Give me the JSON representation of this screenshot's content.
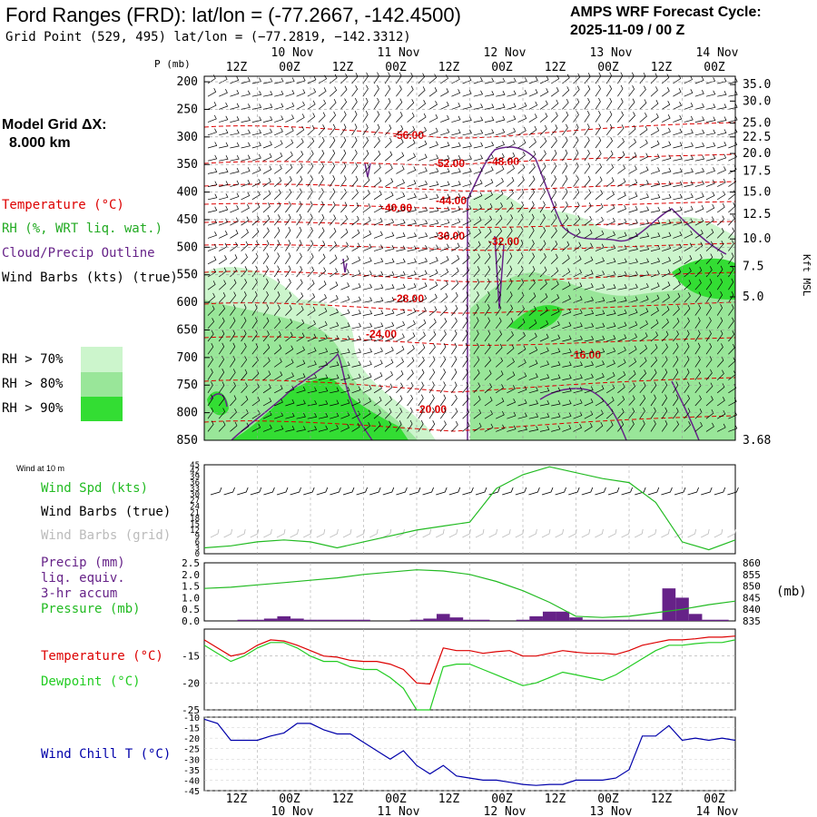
{
  "header": {
    "title": "Ford Ranges (FRD):  lat/lon = (-77.2667, -142.4500)",
    "subtitle": "Grid Point (529, 495) lat/lon = (−77.2819, −142.3312)",
    "cycle_line1": "AMPS WRF Forecast Cycle:",
    "cycle_line2": "2025-11-09 / 00  Z"
  },
  "left_legend": {
    "model_grid_line1": "Model Grid ΔX:",
    "model_grid_line2": "8.000 km",
    "temperature": "Temperature (°C)",
    "rh": "RH (%, WRT liq. wat.)",
    "cloud": "Cloud/Precip Outline",
    "wind": "Wind Barbs (kts) (true)",
    "rh_70": "RH > 70%",
    "rh_80": "RH > 80%",
    "rh_90": "RH > 90%"
  },
  "colors": {
    "temperature": "#dd0000",
    "rh": "#22bb22",
    "cloud": "#662288",
    "precip_bar": "#662288",
    "dewpoint": "#22cc22",
    "windchill": "#0000aa",
    "rh70": "#ccf5cc",
    "rh80": "#99e699",
    "rh90": "#33dd33"
  },
  "time_axis": {
    "tick_labels": [
      "12Z",
      "00Z",
      "12Z",
      "00Z",
      "12Z",
      "00Z",
      "12Z",
      "00Z",
      "12Z",
      "00Z"
    ],
    "date_labels": [
      "10 Nov",
      "11 Nov",
      "12 Nov",
      "13 Nov",
      "14 Nov"
    ]
  },
  "chart_data": [
    {
      "type": "heatmap",
      "name": "cross-section",
      "ylabel": "P (mb)",
      "ylabel_right": "Kft MSL",
      "pressure_ticks": [
        200,
        250,
        300,
        350,
        400,
        450,
        500,
        550,
        600,
        650,
        700,
        750,
        800,
        850
      ],
      "height_ticks": [
        "35.0",
        "30.0",
        "25.0",
        "22.5",
        "20.0",
        "17.5",
        "15.0",
        "12.5",
        "10.0",
        "7.5",
        "5.0",
        "3.68"
      ],
      "height_tick_pressures": [
        205,
        235,
        275,
        300,
        330,
        362,
        400,
        440,
        485,
        535,
        590,
        850
      ],
      "temperature_contour_labels": [
        "-56.00",
        "-52.00",
        "-48.00",
        "-44.00",
        "-40.00",
        "-36.00",
        "-32.00",
        "-28.00",
        "-24.00",
        "-20.00",
        "-16.00"
      ],
      "ylim": [
        850,
        190
      ]
    },
    {
      "type": "line",
      "name": "wind-10m",
      "title": "Wind at 10 m",
      "legend": [
        "Wind Spd (kts)",
        "Wind Barbs (true)",
        "Wind Barbs (grid)"
      ],
      "y_ticks": [
        0,
        3,
        6,
        9,
        12,
        15,
        18,
        21,
        24,
        27,
        30,
        33,
        36,
        39,
        42,
        45
      ],
      "ylim": [
        0,
        45
      ],
      "series": [
        {
          "x": [
            0,
            6,
            12,
            18,
            24,
            30,
            36,
            42,
            48,
            54,
            60,
            66,
            72,
            78,
            84,
            90,
            96,
            102,
            108,
            114,
            120
          ],
          "values": [
            3,
            4,
            6,
            7,
            6,
            3,
            6,
            9,
            12,
            14,
            16,
            33,
            40,
            44,
            41,
            38,
            36,
            26,
            6,
            2,
            7
          ]
        }
      ]
    },
    {
      "type": "bar",
      "name": "precip-pressure",
      "legend": [
        "Precip (mm)",
        "liq. equiv.",
        "3-hr accum",
        "Pressure (mb)"
      ],
      "y_ticks": [
        0.0,
        0.5,
        1.0,
        1.5,
        2.0,
        2.5
      ],
      "ylim": [
        0,
        2.5
      ],
      "y2_ticks": [
        835,
        840,
        845,
        850,
        855,
        860
      ],
      "y2lim": [
        835,
        860
      ],
      "y2_unit": "(mb)",
      "precip": {
        "x": [
          9,
          12,
          15,
          18,
          21,
          24,
          27,
          30,
          33,
          36,
          39,
          42,
          45,
          48,
          51,
          54,
          57,
          60,
          63,
          66,
          69,
          72,
          75,
          78,
          81,
          84,
          87,
          90,
          93,
          96,
          99,
          102,
          105,
          108,
          111,
          114,
          117
        ],
        "values": [
          0.05,
          0.05,
          0.1,
          0.2,
          0.1,
          0.05,
          0.05,
          0.05,
          0.05,
          0.05,
          0.0,
          0.0,
          0.0,
          0.05,
          0.1,
          0.3,
          0.15,
          0.05,
          0.05,
          0.0,
          0.0,
          0.05,
          0.2,
          0.4,
          0.4,
          0.15,
          0.05,
          0.05,
          0.05,
          0.05,
          0.05,
          0.05,
          1.4,
          1.0,
          0.3,
          0.05,
          0.05
        ]
      },
      "pressure": {
        "x": [
          0,
          6,
          12,
          18,
          24,
          30,
          36,
          42,
          48,
          54,
          60,
          66,
          72,
          78,
          84,
          90,
          96,
          102,
          108,
          114,
          120
        ],
        "values": [
          849,
          849.5,
          850.5,
          851.5,
          852.5,
          853.5,
          855,
          856,
          857,
          856.5,
          855,
          852,
          848,
          843,
          837,
          836.5,
          837,
          838.5,
          840,
          842,
          843.5
        ]
      }
    },
    {
      "type": "line",
      "name": "temperature-dewpoint",
      "legend": [
        "Temperature (°C)",
        "Dewpoint (°C)"
      ],
      "y_ticks": [
        -15,
        -20,
        -25
      ],
      "ylim": [
        -25,
        -10
      ],
      "series": [
        {
          "x": [
            0,
            3,
            6,
            9,
            12,
            15,
            18,
            21,
            24,
            27,
            30,
            33,
            36,
            39,
            42,
            45,
            48,
            51,
            54,
            57,
            60,
            63,
            66,
            69,
            72,
            75,
            78,
            81,
            84,
            87,
            90,
            93,
            96,
            99,
            102,
            105,
            108,
            111,
            114,
            117,
            120
          ],
          "values": [
            -12,
            -13.5,
            -15,
            -14.5,
            -13,
            -12,
            -12.2,
            -13,
            -14,
            -15,
            -15.2,
            -15.8,
            -16,
            -16,
            -16.5,
            -17.5,
            -20,
            -20.2,
            -13.5,
            -14,
            -14,
            -14.5,
            -14.2,
            -14,
            -15,
            -15,
            -14.5,
            -14,
            -14.3,
            -14.5,
            -14.5,
            -14.7,
            -14,
            -13,
            -12.5,
            -12,
            -12,
            -11.8,
            -11.5,
            -11.5,
            -11.3
          ]
        },
        {
          "x": [
            0,
            3,
            6,
            9,
            12,
            15,
            18,
            21,
            24,
            27,
            30,
            33,
            36,
            39,
            42,
            45,
            48,
            51,
            54,
            57,
            60,
            63,
            66,
            69,
            72,
            75,
            78,
            81,
            84,
            87,
            90,
            93,
            96,
            99,
            102,
            105,
            108,
            111,
            114,
            117,
            120
          ],
          "values": [
            -13,
            -14.5,
            -16,
            -15,
            -13.5,
            -12.5,
            -12.5,
            -13.5,
            -15,
            -16,
            -16,
            -17,
            -17.5,
            -17.5,
            -19,
            -21,
            -25,
            -25,
            -17,
            -16.5,
            -16.5,
            -17.5,
            -18.5,
            -19.5,
            -20.5,
            -20,
            -19,
            -18,
            -18.5,
            -19,
            -19.5,
            -18.5,
            -17,
            -15.5,
            -14,
            -13,
            -13,
            -12.7,
            -12.5,
            -12.5,
            -12
          ]
        }
      ]
    },
    {
      "type": "line",
      "name": "wind-chill",
      "legend": [
        "Wind Chill T (°C)"
      ],
      "y_ticks": [
        -10,
        -15,
        -20,
        -25,
        -30,
        -35,
        -40,
        -45
      ],
      "ylim": [
        -45,
        -10
      ],
      "series": [
        {
          "x": [
            0,
            3,
            6,
            9,
            12,
            15,
            18,
            21,
            24,
            27,
            30,
            33,
            36,
            39,
            42,
            45,
            48,
            51,
            54,
            57,
            60,
            63,
            66,
            69,
            72,
            75,
            78,
            81,
            84,
            87,
            90,
            93,
            96,
            99,
            102,
            105,
            108,
            111,
            114,
            117,
            120
          ],
          "values": [
            -11,
            -13,
            -21,
            -21,
            -21,
            -19,
            -17.5,
            -13,
            -13,
            -16,
            -18,
            -18,
            -22,
            -26,
            -30,
            -26,
            -33,
            -37,
            -33,
            -38,
            -39,
            -40,
            -40,
            -41,
            -42,
            -42.5,
            -42,
            -42,
            -40,
            -40,
            -40,
            -39,
            -35,
            -19,
            -19,
            -14,
            -21,
            -20,
            -21,
            -20,
            -21
          ]
        }
      ]
    }
  ]
}
